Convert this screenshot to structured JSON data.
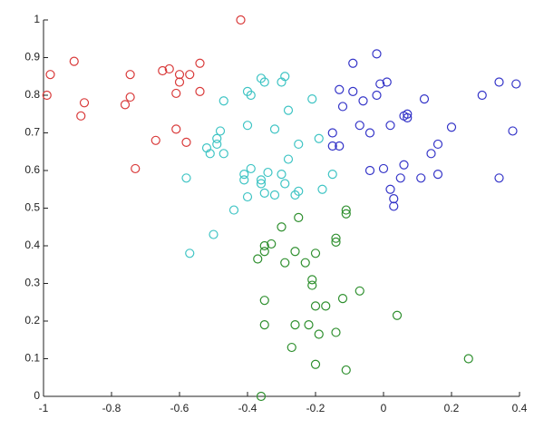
{
  "chart_data": {
    "type": "scatter",
    "xlim": [
      -1,
      0.4
    ],
    "ylim": [
      0,
      1
    ],
    "xticks": [
      -1,
      -0.8,
      -0.6,
      -0.4,
      -0.2,
      0,
      0.2,
      0.4
    ],
    "yticks": [
      0,
      0.1,
      0.2,
      0.3,
      0.4,
      0.5,
      0.6,
      0.7,
      0.8,
      0.9,
      1
    ],
    "series": [
      {
        "color": "#d93a3a",
        "x": [
          -0.99,
          -0.98,
          -0.91,
          -0.89,
          -0.88,
          -0.76,
          -0.745,
          -0.745,
          -0.73,
          -0.67,
          -0.65,
          -0.63,
          -0.61,
          -0.61,
          -0.6,
          -0.6,
          -0.58,
          -0.57,
          -0.54,
          -0.54,
          -0.42
        ],
        "y": [
          0.8,
          0.855,
          0.89,
          0.745,
          0.78,
          0.775,
          0.795,
          0.855,
          0.605,
          0.68,
          0.865,
          0.87,
          0.805,
          0.71,
          0.835,
          0.855,
          0.675,
          0.855,
          0.885,
          0.81,
          1.0
        ]
      },
      {
        "color": "#3ec4c4",
        "x": [
          -0.58,
          -0.57,
          -0.52,
          -0.51,
          -0.49,
          -0.49,
          -0.48,
          -0.47,
          -0.47,
          -0.5,
          -0.44,
          -0.41,
          -0.41,
          -0.4,
          -0.4,
          -0.4,
          -0.39,
          -0.39,
          -0.36,
          -0.35,
          -0.36,
          -0.36,
          -0.35,
          -0.34,
          -0.32,
          -0.32,
          -0.3,
          -0.29,
          -0.3,
          -0.29,
          -0.28,
          -0.28,
          -0.26,
          -0.25,
          -0.25,
          -0.21,
          -0.19,
          -0.18,
          -0.15
        ],
        "y": [
          0.58,
          0.38,
          0.66,
          0.645,
          0.67,
          0.685,
          0.705,
          0.645,
          0.785,
          0.43,
          0.495,
          0.59,
          0.575,
          0.53,
          0.72,
          0.81,
          0.8,
          0.605,
          0.845,
          0.835,
          0.565,
          0.575,
          0.54,
          0.595,
          0.71,
          0.535,
          0.835,
          0.85,
          0.59,
          0.565,
          0.76,
          0.63,
          0.535,
          0.67,
          0.545,
          0.79,
          0.685,
          0.55,
          0.59
        ]
      },
      {
        "color": "#3434c8",
        "x": [
          -0.15,
          -0.15,
          -0.13,
          -0.13,
          -0.12,
          -0.09,
          -0.09,
          -0.07,
          -0.06,
          -0.04,
          -0.04,
          -0.02,
          -0.01,
          -0.02,
          0,
          0.01,
          0.02,
          0.02,
          0.03,
          0.03,
          0.05,
          0.06,
          0.06,
          0.07,
          0.07,
          0.11,
          0.12,
          0.14,
          0.16,
          0.16,
          0.2,
          0.29,
          0.34,
          0.34,
          0.38,
          0.39
        ],
        "y": [
          0.7,
          0.665,
          0.815,
          0.665,
          0.77,
          0.885,
          0.81,
          0.72,
          0.785,
          0.7,
          0.6,
          0.91,
          0.83,
          0.8,
          0.605,
          0.835,
          0.72,
          0.55,
          0.525,
          0.505,
          0.58,
          0.745,
          0.615,
          0.74,
          0.75,
          0.58,
          0.79,
          0.645,
          0.67,
          0.59,
          0.715,
          0.8,
          0.835,
          0.58,
          0.705,
          0.83
        ]
      },
      {
        "color": "#2e8f2e",
        "x": [
          -0.36,
          -0.37,
          -0.35,
          -0.35,
          -0.35,
          -0.35,
          -0.33,
          -0.3,
          -0.29,
          -0.27,
          -0.26,
          -0.26,
          -0.25,
          -0.23,
          -0.22,
          -0.21,
          -0.21,
          -0.2,
          -0.2,
          -0.2,
          -0.19,
          -0.17,
          -0.14,
          -0.14,
          -0.14,
          -0.12,
          -0.11,
          -0.11,
          -0.11,
          -0.07,
          0.04,
          0.25
        ],
        "y": [
          0.0,
          0.365,
          0.4,
          0.385,
          0.255,
          0.19,
          0.405,
          0.45,
          0.355,
          0.13,
          0.385,
          0.19,
          0.475,
          0.355,
          0.19,
          0.31,
          0.295,
          0.085,
          0.38,
          0.24,
          0.165,
          0.24,
          0.42,
          0.41,
          0.17,
          0.26,
          0.495,
          0.485,
          0.07,
          0.28,
          0.215,
          0.1
        ]
      }
    ]
  }
}
